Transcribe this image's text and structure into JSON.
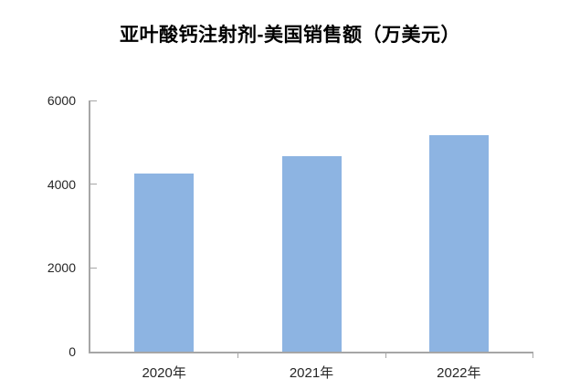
{
  "chart_data": {
    "type": "bar",
    "title": "亚叶酸钙注射剂-美国销售额（万美元）",
    "categories": [
      "2020年",
      "2021年",
      "2022年"
    ],
    "values": [
      4260,
      4660,
      5170
    ],
    "xlabel": "",
    "ylabel": "",
    "ylim": [
      0,
      6000
    ],
    "yticks": [
      0,
      2000,
      4000,
      6000
    ],
    "grid": false,
    "legend": "none",
    "bar_color": "#8DB4E2",
    "axis_color": "#A6A6A6",
    "label_color": "#262626",
    "title_color": "#000000",
    "background_color": "#FFFFFF"
  }
}
